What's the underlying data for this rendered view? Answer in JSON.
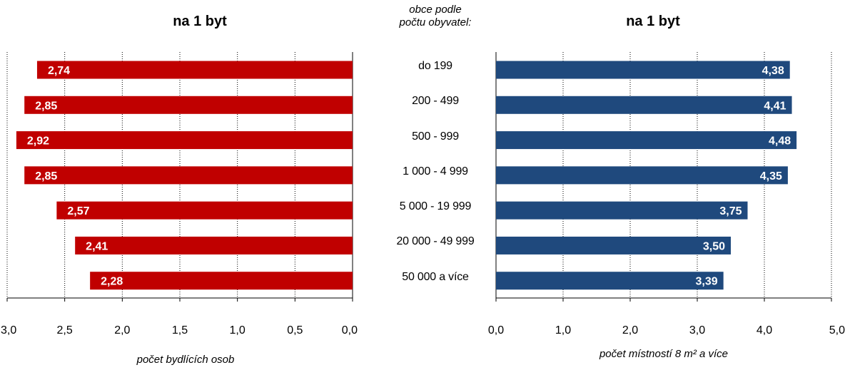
{
  "chart_data": [
    {
      "type": "bar",
      "orientation": "horizontal",
      "direction": "right-to-left",
      "title": "na 1 byt",
      "xlabel": "počet bydlících osob",
      "categories": [
        "do 199",
        "200 - 499",
        "500 - 999",
        "1 000 - 4 999",
        "5 000 - 19 999",
        "20 000 - 49 999",
        "50 000 a více"
      ],
      "values": [
        2.74,
        2.85,
        2.92,
        2.85,
        2.57,
        2.41,
        2.28
      ],
      "value_labels": [
        "2,74",
        "2,85",
        "2,92",
        "2,85",
        "2,57",
        "2,41",
        "2,28"
      ],
      "xlim": [
        0,
        3
      ],
      "ticks": [
        "3,0",
        "2,5",
        "2,0",
        "1,5",
        "1,0",
        "0,5",
        "0,0"
      ],
      "tick_values": [
        3.0,
        2.5,
        2.0,
        1.5,
        1.0,
        0.5,
        0.0
      ],
      "grid": "vertical dotted",
      "color": "#c00000"
    },
    {
      "type": "bar",
      "orientation": "horizontal",
      "title": "na 1 byt",
      "xlabel": "počet místností 8 m² a více",
      "categories": [
        "do 199",
        "200 - 499",
        "500 - 999",
        "1 000 - 4 999",
        "5 000 - 19 999",
        "20 000 - 49 999",
        "50 000 a více"
      ],
      "values": [
        4.38,
        4.41,
        4.48,
        4.35,
        3.75,
        3.5,
        3.39
      ],
      "value_labels": [
        "4,38",
        "4,41",
        "4,48",
        "4,35",
        "3,75",
        "3,50",
        "3,39"
      ],
      "xlim": [
        0,
        5
      ],
      "ticks": [
        "0,0",
        "1,0",
        "2,0",
        "3,0",
        "4,0",
        "5,0"
      ],
      "tick_values": [
        0,
        1,
        2,
        3,
        4,
        5
      ],
      "grid": "vertical dotted",
      "color": "#1f497d"
    }
  ],
  "categories_header": "obce podle\npočtu obyvatel:"
}
